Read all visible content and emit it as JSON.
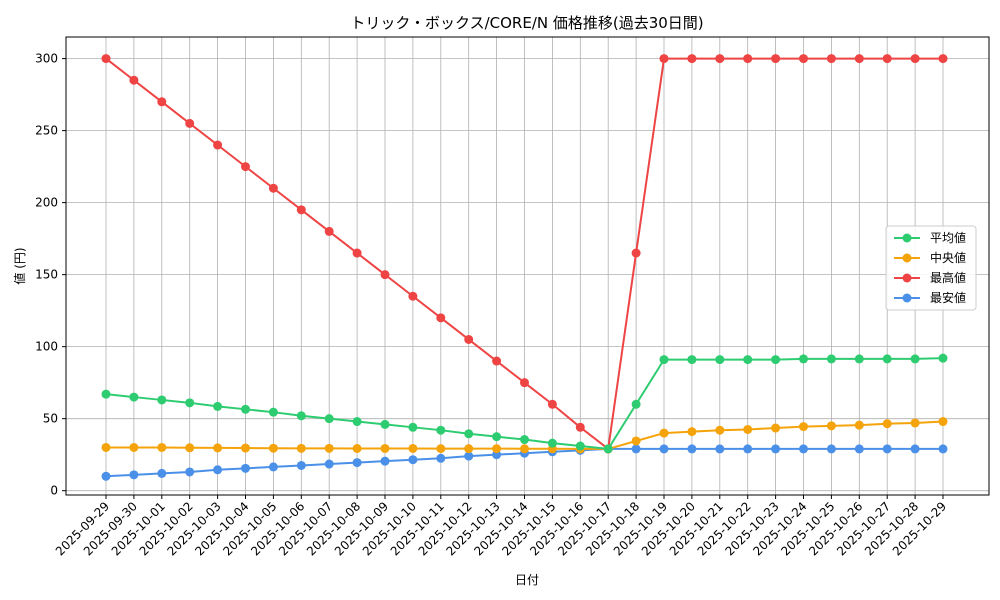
{
  "chart_data": {
    "type": "line",
    "title": "トリック・ボックス/CORE/N 価格推移(過去30日間)",
    "xlabel": "日付",
    "ylabel": "値 (円)",
    "ylim": [
      -3,
      315
    ],
    "yticks": [
      0,
      50,
      100,
      150,
      200,
      250,
      300
    ],
    "grid": true,
    "legend_position": "center-right",
    "x": [
      "2025-09-29",
      "2025-09-30",
      "2025-10-01",
      "2025-10-02",
      "2025-10-03",
      "2025-10-04",
      "2025-10-05",
      "2025-10-06",
      "2025-10-07",
      "2025-10-08",
      "2025-10-09",
      "2025-10-10",
      "2025-10-11",
      "2025-10-12",
      "2025-10-13",
      "2025-10-14",
      "2025-10-15",
      "2025-10-16",
      "2025-10-17",
      "2025-10-18",
      "2025-10-19",
      "2025-10-20",
      "2025-10-21",
      "2025-10-22",
      "2025-10-23",
      "2025-10-24",
      "2025-10-25",
      "2025-10-26",
      "2025-10-27",
      "2025-10-28",
      "2025-10-29"
    ],
    "series": [
      {
        "name": "平均値",
        "color": "#2ecc71",
        "values": [
          67,
          65,
          63,
          61,
          58.5,
          56.5,
          54.5,
          52,
          50,
          48,
          46,
          44,
          42,
          39.5,
          37.5,
          35.5,
          33,
          31,
          29,
          60,
          91,
          91,
          91,
          91,
          91,
          91.5,
          91.5,
          91.5,
          91.5,
          91.5,
          92
        ]
      },
      {
        "name": "中央値",
        "color": "#f5a30a",
        "values": [
          30,
          30,
          30,
          29.8,
          29.7,
          29.6,
          29.5,
          29.4,
          29.4,
          29.3,
          29.3,
          29.3,
          29.2,
          29.2,
          29.2,
          29.1,
          29.1,
          29,
          29,
          34.5,
          40,
          41,
          42,
          42.5,
          43.5,
          44.5,
          45,
          45.5,
          46.5,
          47,
          48
        ]
      },
      {
        "name": "最高値",
        "color": "#ee4444",
        "values": [
          300,
          285,
          270,
          255,
          240,
          225,
          210,
          195,
          180,
          165,
          150,
          135,
          120,
          105,
          90,
          75,
          60,
          44,
          29,
          165,
          300,
          300,
          300,
          300,
          300,
          300,
          300,
          300,
          300,
          300,
          300
        ]
      },
      {
        "name": "最安値",
        "color": "#4a90e8",
        "values": [
          10,
          11,
          12,
          13,
          14.5,
          15.5,
          16.5,
          17.5,
          18.5,
          19.5,
          20.5,
          21.5,
          22.5,
          24,
          25,
          26,
          27,
          28,
          29,
          29,
          29,
          29,
          29,
          29,
          29,
          29,
          29,
          29,
          29,
          29,
          29
        ]
      }
    ]
  }
}
